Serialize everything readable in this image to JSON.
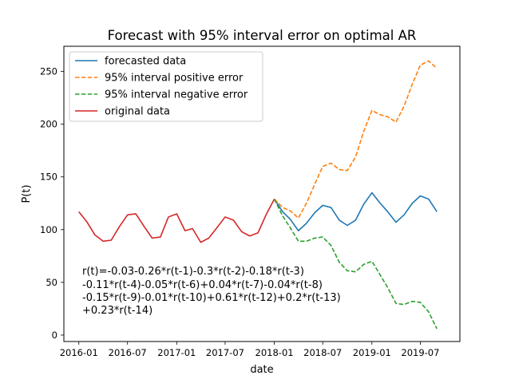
{
  "chart_data": {
    "type": "line",
    "title": "Forecast with 95% interval error on optimal AR",
    "xlabel": "date",
    "ylabel": "P(t)",
    "xlim": [
      "2015-11-06",
      "2019-11-26"
    ],
    "ylim": [
      -6.1,
      273.9
    ],
    "x_ticks": [
      {
        "date": "2016-01-01",
        "label": "2016-01"
      },
      {
        "date": "2016-07-01",
        "label": "2016-07"
      },
      {
        "date": "2017-01-01",
        "label": "2017-01"
      },
      {
        "date": "2017-07-01",
        "label": "2017-07"
      },
      {
        "date": "2018-01-01",
        "label": "2018-01"
      },
      {
        "date": "2018-07-01",
        "label": "2018-07"
      },
      {
        "date": "2019-01-01",
        "label": "2019-01"
      },
      {
        "date": "2019-07-01",
        "label": "2019-07"
      }
    ],
    "y_ticks": [
      0,
      50,
      100,
      150,
      200,
      250
    ],
    "grid": false,
    "legend_position": "upper-left",
    "series": [
      {
        "name": "forecasted data",
        "color": "#1f77b4",
        "dash": "solid",
        "x": [
          "2018-01-01",
          "2018-02-01",
          "2018-03-01",
          "2018-04-01",
          "2018-05-01",
          "2018-06-01",
          "2018-07-01",
          "2018-08-01",
          "2018-09-01",
          "2018-10-01",
          "2018-11-01",
          "2018-12-01",
          "2019-01-01",
          "2019-02-01",
          "2019-03-01",
          "2019-04-01",
          "2019-05-01",
          "2019-06-01",
          "2019-07-01",
          "2019-08-01",
          "2019-09-01"
        ],
        "y": [
          129,
          117,
          110,
          99,
          106,
          116,
          123,
          121,
          109,
          104,
          109,
          124,
          135,
          125,
          117,
          107,
          114,
          125,
          132,
          129,
          117
        ]
      },
      {
        "name": "95% interval positive error",
        "color": "#ff7f0e",
        "dash": "dashed",
        "x": [
          "2018-01-01",
          "2018-02-01",
          "2018-03-01",
          "2018-04-01",
          "2018-05-01",
          "2018-06-01",
          "2018-07-01",
          "2018-08-01",
          "2018-09-01",
          "2018-10-01",
          "2018-11-01",
          "2018-12-01",
          "2019-01-01",
          "2019-02-01",
          "2019-03-01",
          "2019-04-01",
          "2019-05-01",
          "2019-06-01",
          "2019-07-01",
          "2019-08-01",
          "2019-09-01"
        ],
        "y": [
          129,
          121,
          118,
          111,
          125,
          143,
          160,
          163,
          157,
          156,
          169,
          193,
          213,
          209,
          207,
          202,
          217,
          238,
          256,
          260,
          253
        ]
      },
      {
        "name": "95% interval negative error",
        "color": "#2ca02c",
        "dash": "dashed",
        "x": [
          "2018-01-01",
          "2018-02-01",
          "2018-03-01",
          "2018-04-01",
          "2018-05-01",
          "2018-06-01",
          "2018-07-01",
          "2018-08-01",
          "2018-09-01",
          "2018-10-01",
          "2018-11-01",
          "2018-12-01",
          "2019-01-01",
          "2019-02-01",
          "2019-03-01",
          "2019-04-01",
          "2019-05-01",
          "2019-06-01",
          "2019-07-01",
          "2019-08-01",
          "2019-09-01"
        ],
        "y": [
          129,
          113,
          102,
          89,
          89,
          92,
          93,
          85,
          69,
          61,
          60,
          67,
          70,
          57,
          45,
          30,
          29,
          32,
          31,
          22,
          6
        ]
      },
      {
        "name": "original data",
        "color": "#d62728",
        "dash": "solid",
        "x": [
          "2016-01-01",
          "2016-02-01",
          "2016-03-01",
          "2016-04-01",
          "2016-05-01",
          "2016-06-01",
          "2016-07-01",
          "2016-08-01",
          "2016-09-01",
          "2016-10-01",
          "2016-11-01",
          "2016-12-01",
          "2017-01-01",
          "2017-02-01",
          "2017-03-01",
          "2017-04-01",
          "2017-05-01",
          "2017-06-01",
          "2017-07-01",
          "2017-08-01",
          "2017-09-01",
          "2017-10-01",
          "2017-11-01",
          "2017-12-01",
          "2018-01-01"
        ],
        "y": [
          117,
          107,
          95,
          89,
          90,
          103,
          114,
          115,
          103,
          92,
          93,
          112,
          115,
          99,
          101,
          88,
          92,
          102,
          112,
          109,
          98,
          94,
          97,
          114,
          129
        ]
      }
    ],
    "annotation": [
      "r(t)=-0.03-0.26*r(t-1)-0.3*r(t-2)-0.18*r(t-3)",
      "-0.11*r(t-4)-0.05*r(t-6)+0.04*r(t-7)-0.04*r(t-8)",
      "-0.15*r(t-9)-0.01*r(t-10)+0.61*r(t-12)+0.2*r(t-13)",
      "+0.23*r(t-14)"
    ]
  }
}
